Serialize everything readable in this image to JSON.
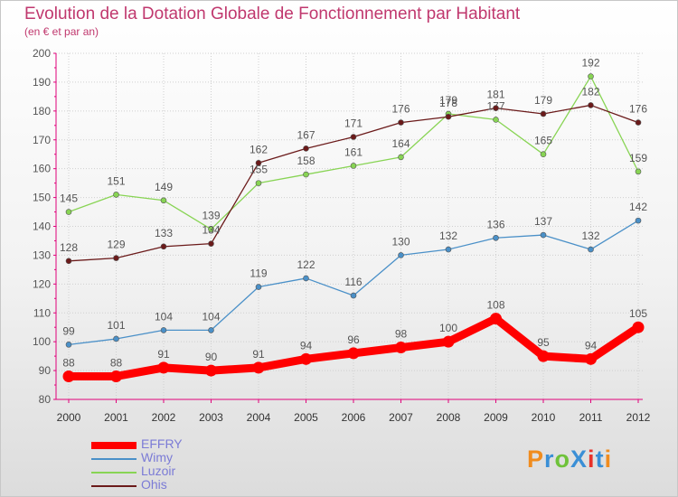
{
  "header": {
    "title": "Evolution de la Dotation Globale de Fonctionnement par Habitant",
    "subtitle": "(en € et par an)"
  },
  "logo": {
    "text": "ProXiti",
    "colors": [
      "#f08c1e",
      "#3a8fd6",
      "#6fc23a",
      "#3a8fd6",
      "#e8322a",
      "#3a8fd6",
      "#f08c1e"
    ]
  },
  "colors": {
    "axis": "#e0007a",
    "grid": "#cfcfcf",
    "label": "#555555"
  },
  "chart_data": {
    "type": "line",
    "x": [
      "2000",
      "2001",
      "2002",
      "2003",
      "2004",
      "2005",
      "2006",
      "2007",
      "2008",
      "2009",
      "2010",
      "2011",
      "2012"
    ],
    "ylim": [
      80,
      200
    ],
    "yticks": [
      80,
      90,
      100,
      110,
      120,
      130,
      140,
      150,
      160,
      170,
      180,
      190,
      200
    ],
    "grid": true,
    "legend_position": "bottom-left",
    "series": [
      {
        "name": "EFFRY",
        "color": "#ff0000",
        "thick": true,
        "values": [
          88,
          88,
          91,
          90,
          91,
          94,
          96,
          98,
          100,
          108,
          95,
          94,
          105
        ],
        "labels": [
          "88",
          "88",
          "91",
          "90",
          "91",
          "94",
          "96",
          "98",
          "100",
          "108",
          "95",
          "94",
          "105"
        ]
      },
      {
        "name": "Wimy",
        "color": "#4a90c8",
        "thick": false,
        "values": [
          99,
          101,
          104,
          104,
          119,
          122,
          116,
          130,
          132,
          136,
          137,
          132,
          142
        ],
        "labels": [
          "99",
          "101",
          "104",
          "104",
          "119",
          "122",
          "116",
          "130",
          "132",
          "136",
          "137",
          "132",
          "142"
        ]
      },
      {
        "name": "Luzoir",
        "color": "#88d454",
        "thick": false,
        "values": [
          145,
          151,
          149,
          139,
          155,
          158,
          161,
          164,
          179,
          177,
          165,
          192,
          159
        ],
        "labels": [
          "145",
          "151",
          "149",
          "139",
          "155",
          "158",
          "161",
          "164",
          "179",
          "177",
          "165",
          "192",
          "159"
        ]
      },
      {
        "name": "Ohis",
        "color": "#6b1a1a",
        "thick": false,
        "values": [
          128,
          129,
          133,
          134,
          162,
          167,
          171,
          176,
          178,
          181,
          179,
          182,
          176
        ],
        "labels": [
          "128",
          "129",
          "133",
          "134",
          "162",
          "167",
          "171",
          "176",
          "178",
          "181",
          "179",
          "182",
          "176"
        ]
      }
    ]
  }
}
